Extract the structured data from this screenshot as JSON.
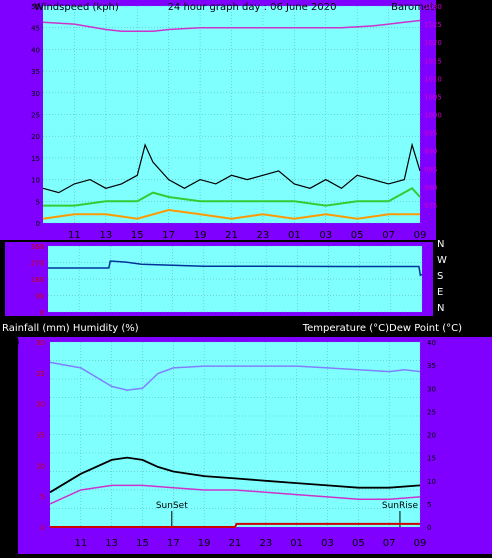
{
  "header": {
    "left_label": "Windspeed (kph)",
    "title": "24 hour graph day : 06 June 2020",
    "right_label": "Barometer (hpa)"
  },
  "lower_header": {
    "left_label": "Rainfall (mm)  Humidity (%)",
    "right_label": "Temperature (°C)Dew Point (°C)"
  },
  "colors": {
    "panel": "#8000ff",
    "plot": "#80ffff",
    "grid": "#55aaaa",
    "humidity": "#8080ff",
    "temperature": "#000000",
    "dew_point": "#cc33cc",
    "rain": "#cc0000",
    "barometer": "#cc33cc",
    "wind_gust": "#000000",
    "wind_avg": "#33cc33",
    "wind_low": "#ff9900",
    "direction": "#003399",
    "left_axis_text": "#000000",
    "rain_axis_text": "#cc0000",
    "right_axis_text": "#cc00cc"
  },
  "x_tick_labels": [
    "11",
    "13",
    "15",
    "17",
    "19",
    "21",
    "23",
    "01",
    "03",
    "05",
    "07",
    "09"
  ],
  "chart_data": [
    {
      "type": "line",
      "name": "wind_barometer",
      "x_hours": "0 = 09:00 (06 June), 24 = 09:00 next day",
      "wind_ylim": [
        0,
        50
      ],
      "wind_ticks": [
        0,
        5,
        10,
        15,
        20,
        25,
        30,
        35,
        40,
        45,
        50
      ],
      "baro_ylim": [
        970,
        1030
      ],
      "baro_ticks": [
        975,
        980,
        985,
        990,
        995,
        1000,
        1005,
        1010,
        1015,
        1020,
        1025,
        1030
      ],
      "barometer": {
        "x": [
          0,
          2,
          4,
          5,
          6,
          7,
          8,
          10,
          12,
          14,
          16,
          18,
          19,
          21,
          22,
          23,
          24
        ],
        "y": [
          1025.5,
          1025,
          1023.5,
          1023,
          1023,
          1023,
          1023.5,
          1024,
          1024,
          1024,
          1024,
          1024,
          1024,
          1024.5,
          1025,
          1025.5,
          1026
        ]
      },
      "wind_gust": {
        "x": [
          0,
          1,
          2,
          3,
          4,
          5,
          6,
          6.5,
          7,
          7.5,
          8,
          9,
          10,
          11,
          12,
          13,
          14,
          15,
          16,
          17,
          18,
          19,
          20,
          21,
          22,
          23,
          23.5,
          24
        ],
        "y": [
          8,
          7,
          9,
          10,
          8,
          9,
          11,
          18,
          14,
          12,
          10,
          8,
          10,
          9,
          11,
          10,
          11,
          12,
          9,
          8,
          10,
          8,
          11,
          10,
          9,
          10,
          18,
          12
        ]
      },
      "wind_avg": {
        "x": [
          0,
          2,
          4,
          6,
          7,
          8,
          10,
          12,
          14,
          16,
          18,
          20,
          22,
          23.5,
          24
        ],
        "y": [
          4,
          4,
          5,
          5,
          7,
          6,
          5,
          5,
          5,
          5,
          4,
          5,
          5,
          8,
          6
        ]
      },
      "wind_low": {
        "x": [
          0,
          2,
          4,
          6,
          8,
          10,
          12,
          14,
          16,
          18,
          20,
          22,
          24
        ],
        "y": [
          1,
          2,
          2,
          1,
          3,
          2,
          1,
          2,
          1,
          2,
          1,
          2,
          2
        ]
      }
    },
    {
      "type": "line",
      "name": "wind_direction",
      "direction_labels": [
        "N",
        "W",
        "S",
        "E",
        "N"
      ],
      "direction_ylim": [
        0,
        360
      ],
      "direction_ticks": [
        0,
        90,
        180,
        270,
        360
      ],
      "direction": {
        "x": [
          0,
          3.9,
          4.0,
          5,
          6,
          7,
          8,
          10,
          14,
          19,
          23.8,
          23.9,
          24
        ],
        "y": [
          240,
          240,
          278,
          272,
          260,
          258,
          255,
          250,
          250,
          248,
          248,
          200,
          205
        ]
      }
    },
    {
      "type": "line",
      "name": "humidity_temperature",
      "humidity_ylim": [
        0,
        100
      ],
      "humidity_ticks": [
        0,
        10,
        20,
        30,
        40,
        50,
        60,
        70,
        80,
        90,
        100
      ],
      "rain_ylim": [
        0,
        30
      ],
      "rain_ticks": [
        0,
        5,
        10,
        15,
        20,
        25,
        30
      ],
      "temp_ylim": [
        0,
        40
      ],
      "temp_ticks": [
        0,
        5,
        10,
        15,
        20,
        25,
        30,
        35,
        40
      ],
      "humidity": {
        "x": [
          0,
          2,
          4,
          5,
          6,
          7,
          8,
          10,
          12,
          14,
          16,
          18,
          20,
          22,
          23,
          24
        ],
        "y": [
          89,
          86,
          76,
          74,
          75,
          83,
          86,
          87,
          87,
          87,
          87,
          86,
          85,
          84,
          85,
          84
        ]
      },
      "temperature": {
        "x": [
          0,
          2,
          4,
          5,
          6,
          7,
          8,
          10,
          12,
          14,
          16,
          18,
          20,
          22,
          24
        ],
        "y": [
          7.5,
          11.5,
          14.5,
          15,
          14.5,
          13,
          12,
          11,
          10.5,
          10,
          9.5,
          9,
          8.5,
          8.5,
          9
        ]
      },
      "dew_point": {
        "x": [
          0,
          2,
          4,
          6,
          8,
          10,
          12,
          14,
          16,
          18,
          20,
          22,
          24
        ],
        "y": [
          5,
          8,
          9,
          9,
          8.5,
          8,
          8,
          7.5,
          7,
          6.5,
          6,
          6,
          6.5
        ]
      },
      "rain": {
        "x": [
          0,
          12,
          12.1,
          24
        ],
        "y": [
          0,
          0,
          0.5,
          0.5
        ]
      },
      "annotations": [
        {
          "label": "SunSet",
          "x": 7.9
        },
        {
          "label": "SunRise",
          "x": 22.7
        }
      ]
    }
  ]
}
